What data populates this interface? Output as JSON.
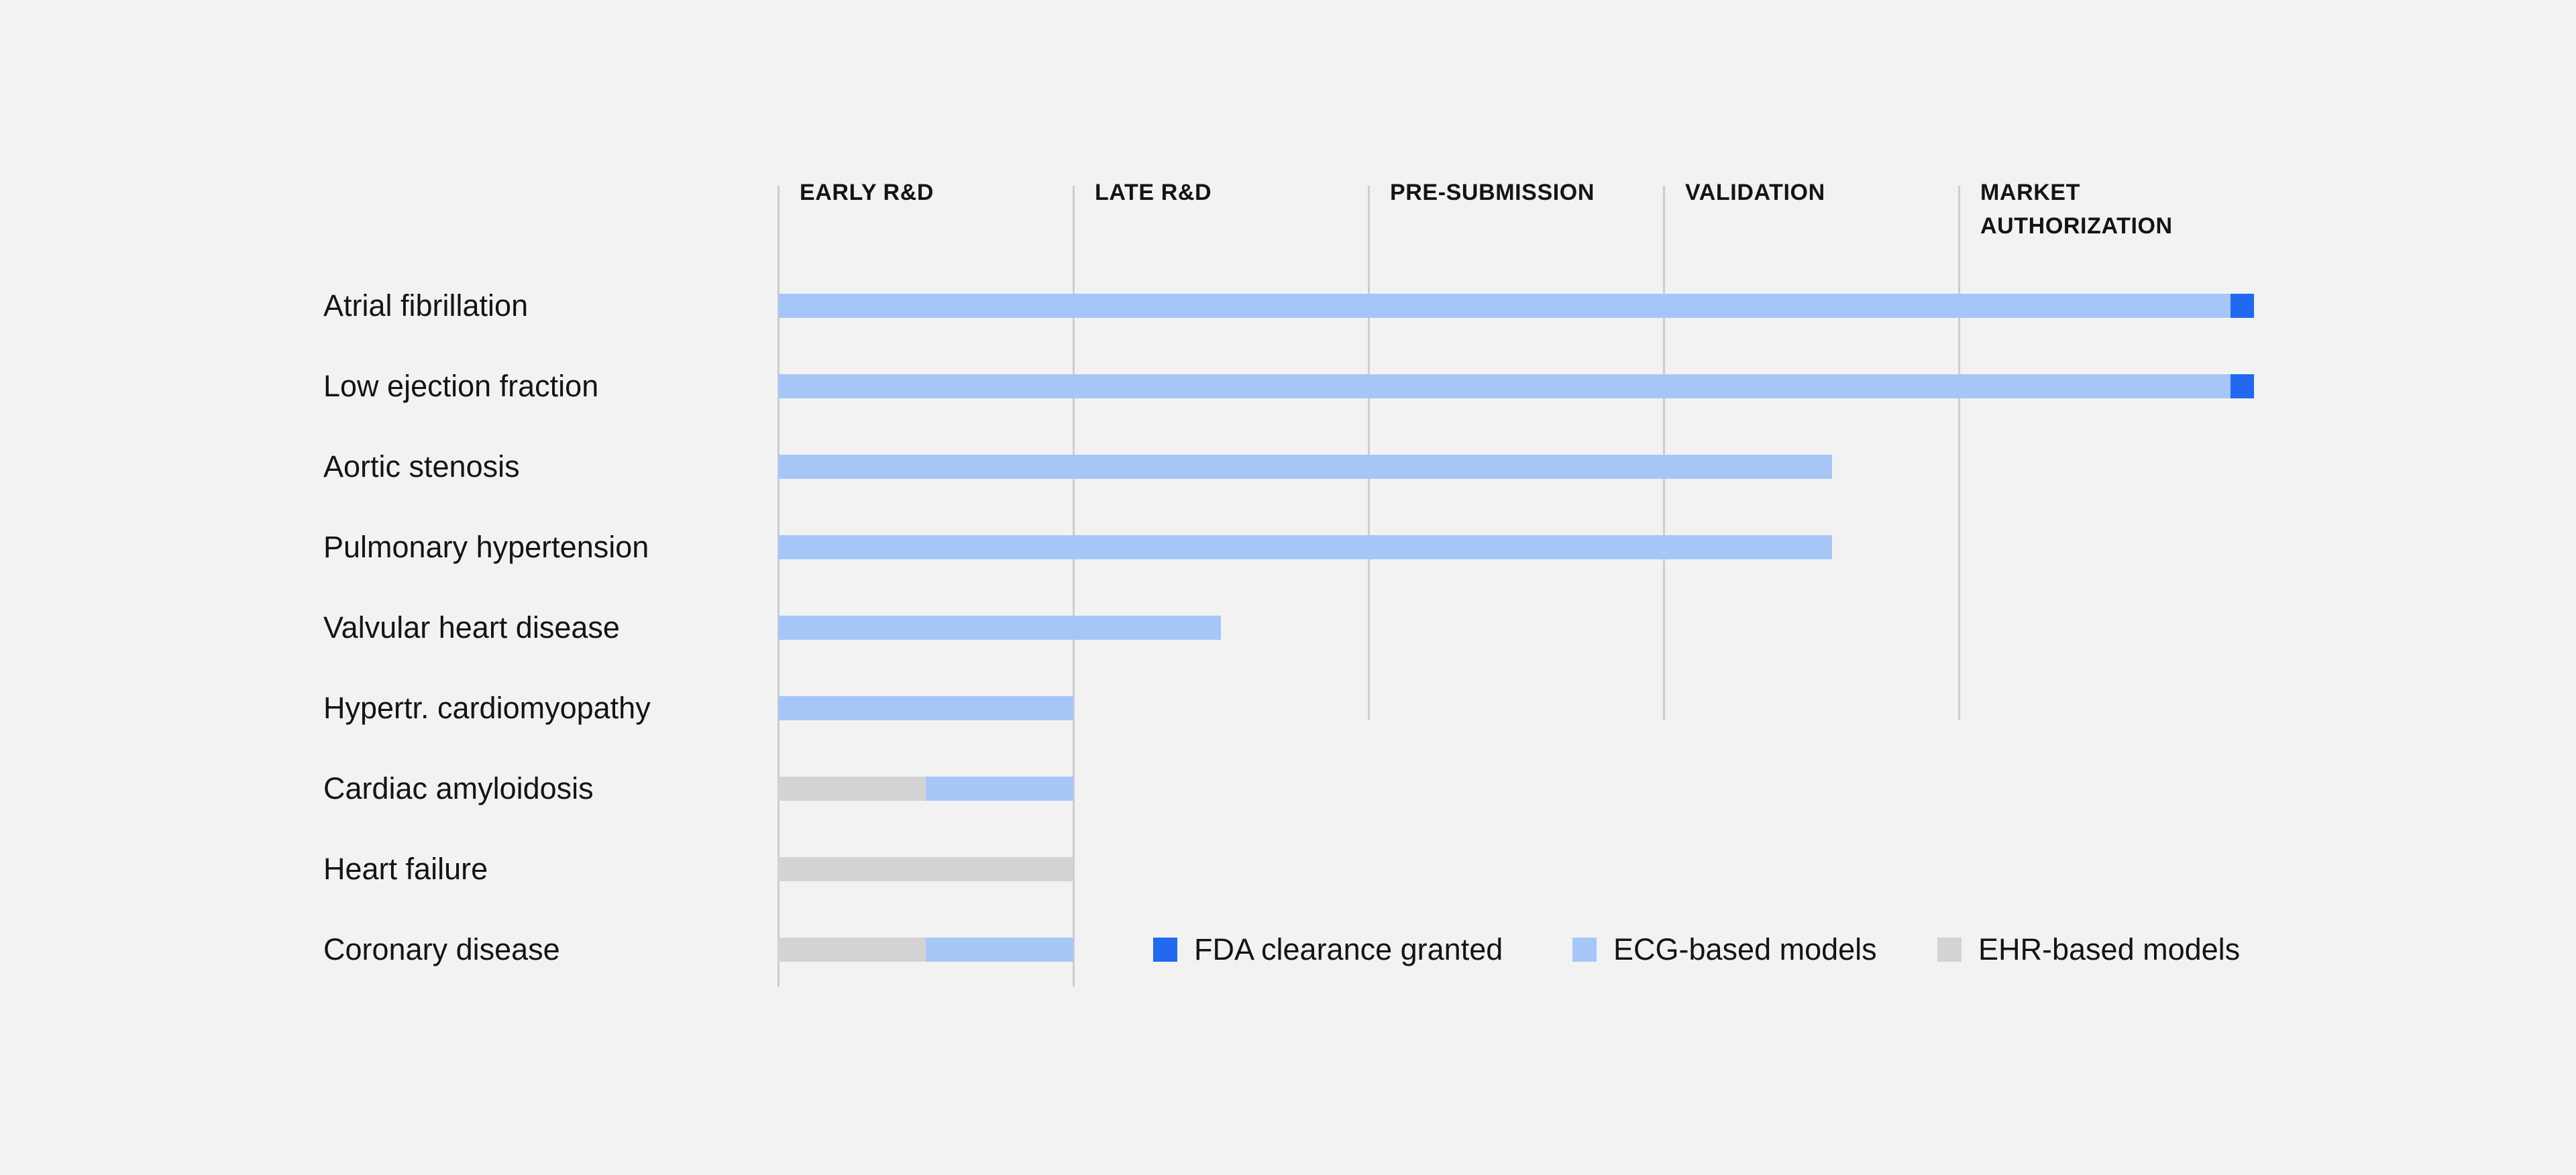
{
  "page": {
    "background_color": "#f2f2f2"
  },
  "chart_data": {
    "type": "bar",
    "variant": "horizontal-stage-progress",
    "title": "",
    "xlabel": "",
    "ylabel": "",
    "grid": "vertical-stage-boundaries",
    "legend_position": "bottom-right",
    "stages": [
      "EARLY R&D",
      "LATE R&D",
      "PRE-SUBMISSION",
      "VALIDATION",
      "MARKET AUTHORIZATION"
    ],
    "stage_axis_range": [
      0,
      5
    ],
    "rows": [
      {
        "label": "Atrial fibrillation",
        "segments": [
          {
            "kind": "ecg",
            "start": 0,
            "end": 4.92
          },
          {
            "kind": "fda",
            "start": 4.92,
            "end": 5
          }
        ]
      },
      {
        "label": "Low ejection fraction",
        "segments": [
          {
            "kind": "ecg",
            "start": 0,
            "end": 4.92
          },
          {
            "kind": "fda",
            "start": 4.92,
            "end": 5
          }
        ]
      },
      {
        "label": "Aortic stenosis",
        "segments": [
          {
            "kind": "ecg",
            "start": 0,
            "end": 3.57
          }
        ]
      },
      {
        "label": "Pulmonary hypertension",
        "segments": [
          {
            "kind": "ecg",
            "start": 0,
            "end": 3.57
          }
        ]
      },
      {
        "label": "Valvular heart disease",
        "segments": [
          {
            "kind": "ecg",
            "start": 0,
            "end": 1.5
          }
        ]
      },
      {
        "label": "Hypertr. cardiomyopathy",
        "segments": [
          {
            "kind": "ecg",
            "start": 0,
            "end": 1
          }
        ]
      },
      {
        "label": "Cardiac amyloidosis",
        "segments": [
          {
            "kind": "ehr",
            "start": 0,
            "end": 0.5
          },
          {
            "kind": "ecg",
            "start": 0.5,
            "end": 1
          }
        ]
      },
      {
        "label": "Heart failure",
        "segments": [
          {
            "kind": "ehr",
            "start": 0,
            "end": 1
          }
        ]
      },
      {
        "label": "Coronary disease",
        "segments": [
          {
            "kind": "ehr",
            "start": 0,
            "end": 0.5
          },
          {
            "kind": "ecg",
            "start": 0.5,
            "end": 1
          }
        ]
      }
    ],
    "legend": [
      {
        "kind": "fda",
        "label": "FDA clearance granted"
      },
      {
        "kind": "ecg",
        "label": "ECG-based models"
      },
      {
        "kind": "ehr",
        "label": "EHR-based models"
      }
    ],
    "colors": {
      "fda": "#2169f0",
      "ecg": "#a6c6f8",
      "ehr": "#d3d3d3",
      "gridline": "#cdcdcd",
      "text": "#141414",
      "background": "#f2f2f2"
    }
  }
}
